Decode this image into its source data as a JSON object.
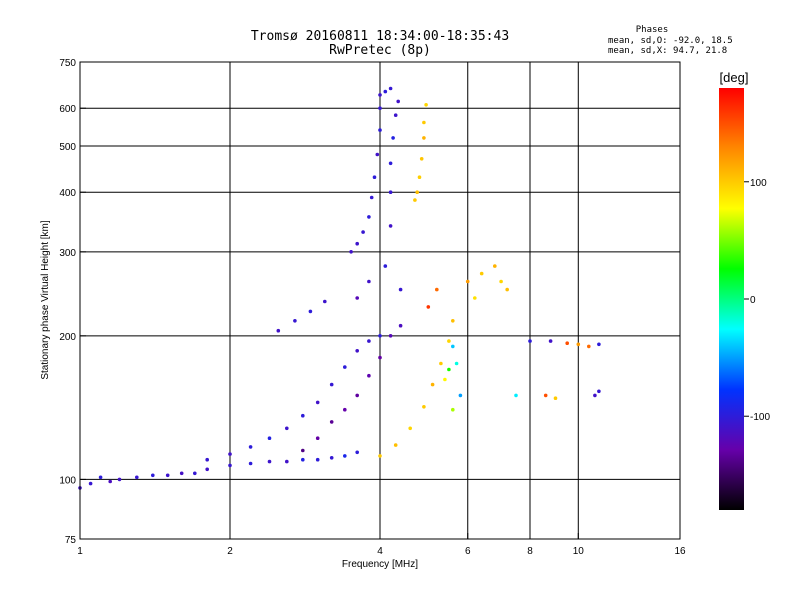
{
  "chart_data": {
    "type": "scatter",
    "title": "Tromsø 20160811 18:34:00-18:35:43",
    "subtitle": "RwPretec (8p)",
    "xlabel": "Frequency [MHz]",
    "ylabel": "Stationary phase Virtual Height [km]",
    "x_scale": "log",
    "y_scale": "log",
    "xlim": [
      1,
      16
    ],
    "ylim": [
      75,
      750
    ],
    "x_ticks": [
      1,
      2,
      4,
      6,
      8,
      10,
      16
    ],
    "x_grid": [
      2,
      4,
      6,
      8,
      10
    ],
    "y_ticks": [
      75,
      100,
      200,
      300,
      400,
      500,
      600,
      750
    ],
    "y_grid": [
      100,
      200,
      300,
      400,
      500,
      600
    ],
    "grid": true,
    "phases_title": "Phases",
    "phases_o": "mean, sd,O: -92.0, 18.5",
    "phases_x": "mean, sd,X:  94.7, 21.8",
    "colorbar": {
      "label": "[deg]",
      "range": [
        -180,
        180
      ],
      "ticks": [
        100,
        0,
        -100
      ],
      "colors": [
        "#ff0000",
        "#ff8800",
        "#ffff00",
        "#00ff00",
        "#00ffff",
        "#0033ff",
        "#6600aa",
        "#000000"
      ]
    },
    "series": [
      {
        "points": [
          [
            1.0,
            96,
            -110
          ],
          [
            1.05,
            98,
            -105
          ],
          [
            1.1,
            101,
            -100
          ],
          [
            1.15,
            99,
            -115
          ],
          [
            1.2,
            100,
            -110
          ],
          [
            1.3,
            101,
            -105
          ],
          [
            1.4,
            102,
            -100
          ],
          [
            1.5,
            102,
            -108
          ],
          [
            1.6,
            103,
            -112
          ],
          [
            1.7,
            103,
            -104
          ]
        ]
      },
      {
        "points": [
          [
            1.8,
            105,
            -110
          ],
          [
            2.0,
            107,
            -105
          ],
          [
            2.2,
            108,
            -100
          ],
          [
            2.4,
            109,
            -108
          ],
          [
            2.6,
            109,
            -110
          ],
          [
            2.8,
            110,
            -95
          ],
          [
            3.0,
            110,
            -100
          ],
          [
            3.2,
            111,
            -104
          ],
          [
            3.4,
            112,
            -90
          ],
          [
            3.6,
            114,
            -100
          ]
        ]
      },
      {
        "points": [
          [
            1.8,
            110,
            -105
          ],
          [
            2.0,
            113,
            -110
          ],
          [
            2.2,
            117,
            -100
          ],
          [
            2.4,
            122,
            -95
          ],
          [
            2.6,
            128,
            -108
          ],
          [
            2.8,
            136,
            -100
          ],
          [
            3.0,
            145,
            -110
          ],
          [
            3.2,
            158,
            -104
          ],
          [
            3.4,
            172,
            -100
          ],
          [
            3.6,
            186,
            -110
          ],
          [
            3.8,
            195,
            -106
          ],
          [
            4.0,
            200,
            -100
          ]
        ]
      },
      {
        "points": [
          [
            2.8,
            115,
            -140
          ],
          [
            3.0,
            122,
            -130
          ],
          [
            3.2,
            132,
            -135
          ],
          [
            3.4,
            140,
            -128
          ],
          [
            3.6,
            150,
            -132
          ],
          [
            3.8,
            165,
            -125
          ],
          [
            4.0,
            180,
            -130
          ],
          [
            4.2,
            200,
            -120
          ],
          [
            4.4,
            210,
            -115
          ]
        ]
      },
      {
        "points": [
          [
            3.5,
            300,
            -110
          ],
          [
            3.6,
            312,
            -108
          ],
          [
            3.7,
            330,
            -105
          ],
          [
            3.8,
            355,
            -100
          ],
          [
            3.85,
            390,
            -104
          ],
          [
            3.9,
            430,
            -100
          ],
          [
            3.95,
            480,
            -110
          ],
          [
            4.0,
            540,
            -100
          ],
          [
            4.0,
            600,
            -105
          ],
          [
            4.0,
            640,
            -108
          ]
        ]
      },
      {
        "points": [
          [
            4.2,
            340,
            -110
          ],
          [
            4.2,
            400,
            -105
          ],
          [
            4.2,
            460,
            -100
          ],
          [
            4.25,
            520,
            -95
          ],
          [
            4.3,
            580,
            -108
          ],
          [
            4.35,
            620,
            -110
          ],
          [
            4.1,
            650,
            -100
          ],
          [
            4.2,
            660,
            -104
          ]
        ]
      },
      {
        "points": [
          [
            4.0,
            112,
            100
          ],
          [
            4.3,
            118,
            105
          ],
          [
            4.6,
            128,
            95
          ],
          [
            4.9,
            142,
            100
          ],
          [
            5.1,
            158,
            110
          ],
          [
            5.3,
            175,
            100
          ],
          [
            5.5,
            195,
            95
          ],
          [
            5.6,
            215,
            105
          ]
        ]
      },
      {
        "points": [
          [
            4.7,
            385,
            100
          ],
          [
            4.75,
            400,
            105
          ],
          [
            4.8,
            430,
            98
          ],
          [
            4.85,
            470,
            102
          ],
          [
            4.9,
            520,
            110
          ],
          [
            4.9,
            560,
            100
          ],
          [
            4.95,
            610,
            95
          ]
        ]
      },
      {
        "points": [
          [
            6.0,
            260,
            120
          ],
          [
            6.4,
            270,
            100
          ],
          [
            6.8,
            280,
            110
          ],
          [
            7.0,
            260,
            95
          ],
          [
            7.2,
            250,
            105
          ],
          [
            6.2,
            240,
            90
          ]
        ]
      },
      {
        "points": [
          [
            8.0,
            195,
            -100
          ],
          [
            8.8,
            195,
            -110
          ],
          [
            9.5,
            193,
            150
          ],
          [
            10.0,
            192,
            120
          ],
          [
            10.5,
            190,
            140
          ],
          [
            11.0,
            192,
            -100
          ]
        ]
      },
      {
        "points": [
          [
            5.6,
            190,
            -40
          ],
          [
            5.7,
            175,
            -20
          ],
          [
            5.5,
            170,
            30
          ],
          [
            5.8,
            150,
            -50
          ],
          [
            5.6,
            140,
            60
          ],
          [
            5.4,
            162,
            80
          ]
        ]
      },
      {
        "points": [
          [
            3.6,
            240,
            -120
          ],
          [
            3.8,
            260,
            -110
          ],
          [
            4.1,
            280,
            -100
          ],
          [
            4.4,
            250,
            -105
          ],
          [
            5.0,
            230,
            160
          ],
          [
            5.2,
            250,
            140
          ]
        ]
      },
      {
        "points": [
          [
            2.5,
            205,
            -110
          ],
          [
            2.7,
            215,
            -105
          ],
          [
            2.9,
            225,
            -100
          ],
          [
            3.1,
            236,
            -108
          ]
        ]
      },
      {
        "points": [
          [
            10.8,
            150,
            -110
          ],
          [
            11.0,
            153,
            -105
          ],
          [
            8.6,
            150,
            150
          ],
          [
            9.0,
            148,
            100
          ],
          [
            7.5,
            150,
            -30
          ]
        ]
      }
    ]
  }
}
